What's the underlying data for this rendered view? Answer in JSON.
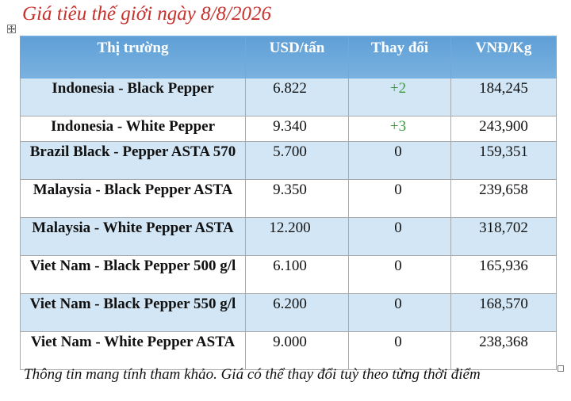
{
  "title": "Giá tiêu thế giới ngày 8/8/2026",
  "table": {
    "headers": [
      "Thị trường",
      "USD/tấn",
      "Thay đổi",
      "VNĐ/Kg"
    ],
    "rows": [
      {
        "market": "Indonesia - Black Pepper",
        "usd": "6.822",
        "change": "+2",
        "vnd": "184,245"
      },
      {
        "market": "Indonesia - White Pepper",
        "usd": "9.340",
        "change": "+3",
        "vnd": "243,900"
      },
      {
        "market": "Brazil Black - Pepper ASTA 570",
        "usd": "5.700",
        "change": "0",
        "vnd": "159,351"
      },
      {
        "market": "Malaysia - Black Pepper ASTA",
        "usd": "9.350",
        "change": "0",
        "vnd": "239,658"
      },
      {
        "market": "Malaysia - White Pepper ASTA",
        "usd": "12.200",
        "change": "0",
        "vnd": "318,702"
      },
      {
        "market": "Viet Nam - Black Pepper 500 g/l",
        "usd": "6.100",
        "change": "0",
        "vnd": "165,936"
      },
      {
        "market": "Viet Nam - Black Pepper 550 g/l",
        "usd": "6.200",
        "change": "0",
        "vnd": "168,570"
      },
      {
        "market": "Viet Nam - White Pepper ASTA",
        "usd": "9.000",
        "change": "0",
        "vnd": "238,368"
      }
    ]
  },
  "note": "Thông tin mang tính tham khảo. Giá có thể thay đổi tuỳ theo từng thời điểm",
  "colors": {
    "title": "#c8322d",
    "header_bg": "#6fa8dc",
    "stripe": "#d2e6f5",
    "change_up": "#3c9a3c",
    "change_zero": "#4472c4"
  },
  "icons": {
    "table_move_handle": "four-arrows-move-icon",
    "table_resize_handle": "square-resize-icon"
  }
}
